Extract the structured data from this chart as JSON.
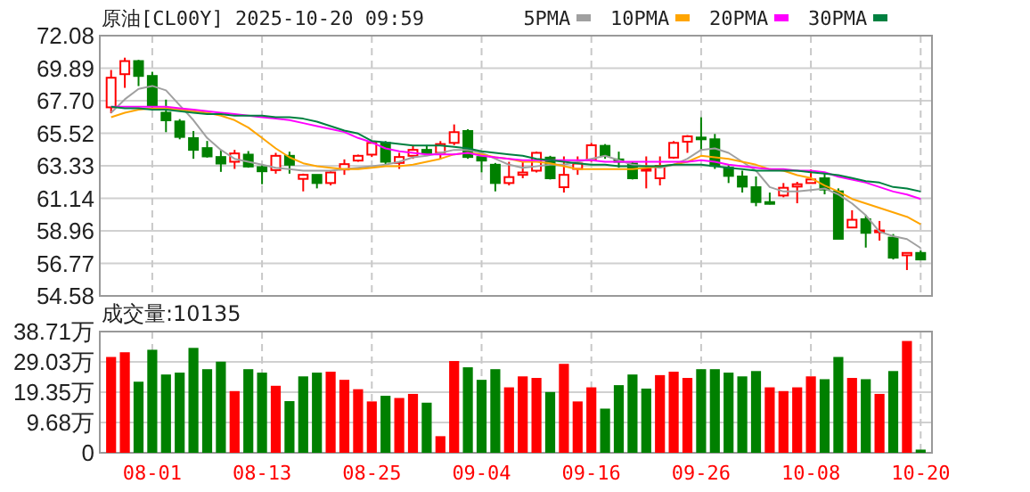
{
  "chart_data": [
    {
      "type": "candlestick",
      "title": "原油[CL00Y] 2025-10-20 09:59",
      "tick_labels": "y",
      "grid": true,
      "legend": "top right",
      "categories": [
        null,
        null,
        null,
        null,
        null,
        null,
        null,
        null,
        null,
        null,
        null,
        null,
        null,
        null,
        null,
        null,
        null,
        null,
        null,
        null,
        null,
        null,
        null,
        null,
        null,
        null,
        null,
        null,
        null,
        null,
        null,
        null,
        null,
        null,
        null,
        null,
        null,
        null,
        null,
        null,
        null,
        null,
        null,
        null,
        null,
        null,
        null,
        null,
        null,
        null,
        null,
        null,
        null,
        null,
        null,
        null,
        null,
        null,
        null,
        null
      ],
      "ylim": [
        54.58,
        72.08
      ],
      "yticks": [
        {
          "value": 54.58,
          "label": "54.58"
        },
        {
          "value": 56.77,
          "label": "56.77"
        },
        {
          "value": 58.96,
          "label": "58.96"
        },
        {
          "value": 61.14,
          "label": "61.14"
        },
        {
          "value": 63.33,
          "label": "63.33"
        },
        {
          "value": 65.52,
          "label": "65.52"
        },
        {
          "value": 67.7,
          "label": "67.70"
        },
        {
          "value": 69.89,
          "label": "69.89"
        },
        {
          "value": 72.08,
          "label": "72.08"
        }
      ],
      "ohlc": [
        [
          67.26,
          69.77,
          66.86,
          69.25
        ],
        [
          69.49,
          70.6,
          68.57,
          70.37
        ],
        [
          70.37,
          70.45,
          68.69,
          69.37
        ],
        [
          69.37,
          69.65,
          67.18,
          67.38
        ],
        [
          66.9,
          67.78,
          65.59,
          66.39
        ],
        [
          66.31,
          66.47,
          65.11,
          65.27
        ],
        [
          65.19,
          65.67,
          63.8,
          64.4
        ],
        [
          64.52,
          65.0,
          63.88,
          63.96
        ],
        [
          63.92,
          64.4,
          62.92,
          63.48
        ],
        [
          63.6,
          64.4,
          63.12,
          64.16
        ],
        [
          64.08,
          64.32,
          63.2,
          63.28
        ],
        [
          63.24,
          63.4,
          62.09,
          62.96
        ],
        [
          63.04,
          64.2,
          62.8,
          64.0
        ],
        [
          64.0,
          64.28,
          62.8,
          63.4
        ],
        [
          62.45,
          62.8,
          61.61,
          62.72
        ],
        [
          62.72,
          62.72,
          61.81,
          62.17
        ],
        [
          62.17,
          63.0,
          62.01,
          62.88
        ],
        [
          63.08,
          63.76,
          62.72,
          63.44
        ],
        [
          63.68,
          64.08,
          63.6,
          64.0
        ],
        [
          64.08,
          64.99,
          63.92,
          64.87
        ],
        [
          64.87,
          64.99,
          63.4,
          63.6
        ],
        [
          63.52,
          64.2,
          63.12,
          63.92
        ],
        [
          64.0,
          64.72,
          63.8,
          64.4
        ],
        [
          64.4,
          64.72,
          64.0,
          64.16
        ],
        [
          64.2,
          64.99,
          63.76,
          64.79
        ],
        [
          64.87,
          66.11,
          64.72,
          65.59
        ],
        [
          65.67,
          65.79,
          63.8,
          63.92
        ],
        [
          63.92,
          64.08,
          62.88,
          63.68
        ],
        [
          63.4,
          63.52,
          61.61,
          62.17
        ],
        [
          62.17,
          63.6,
          62.01,
          62.57
        ],
        [
          62.72,
          63.6,
          62.49,
          62.88
        ],
        [
          63.0,
          64.28,
          62.88,
          64.2
        ],
        [
          63.88,
          64.0,
          62.41,
          62.49
        ],
        [
          61.89,
          63.96,
          61.53,
          62.72
        ],
        [
          63.12,
          63.96,
          62.72,
          63.48
        ],
        [
          63.72,
          64.87,
          63.6,
          64.71
        ],
        [
          64.67,
          64.79,
          63.8,
          64.0
        ],
        [
          63.76,
          64.28,
          63.2,
          63.6
        ],
        [
          63.48,
          63.6,
          62.41,
          62.49
        ],
        [
          63.04,
          63.96,
          61.81,
          63.12
        ],
        [
          62.49,
          63.96,
          62.01,
          63.32
        ],
        [
          63.88,
          64.99,
          63.8,
          64.87
        ],
        [
          64.95,
          65.39,
          64.2,
          65.31
        ],
        [
          65.23,
          66.59,
          64.4,
          65.15
        ],
        [
          65.11,
          65.47,
          63.12,
          63.32
        ],
        [
          63.2,
          63.4,
          62.17,
          62.65
        ],
        [
          62.61,
          63.0,
          61.53,
          61.93
        ],
        [
          61.89,
          62.61,
          60.61,
          60.89
        ],
        [
          60.89,
          61.53,
          60.73,
          60.77
        ],
        [
          61.33,
          62.17,
          61.21,
          61.85
        ],
        [
          61.93,
          62.25,
          60.81,
          62.09
        ],
        [
          62.17,
          63.08,
          62.17,
          62.41
        ],
        [
          62.49,
          62.8,
          61.41,
          61.73
        ],
        [
          61.61,
          61.81,
          58.42,
          58.42
        ],
        [
          59.18,
          60.34,
          59.18,
          59.7
        ],
        [
          59.74,
          60.02,
          57.83,
          58.82
        ],
        [
          58.9,
          59.62,
          58.3,
          58.98
        ],
        [
          58.5,
          58.74,
          57.03,
          57.15
        ],
        [
          57.31,
          57.47,
          56.32,
          57.47
        ],
        [
          57.47,
          57.63,
          57.03,
          57.03
        ]
      ],
      "series": [
        {
          "name": "5PMA",
          "type": "line",
          "color": "#a0a0a0",
          "values": [
            66.9,
            67.8,
            68.5,
            68.7,
            68.4,
            67.4,
            66.4,
            65.2,
            64.4,
            63.8,
            63.6,
            63.4,
            63.2,
            63.1,
            63.0,
            63.0,
            63.0,
            63.1,
            63.2,
            63.3,
            63.4,
            63.6,
            63.9,
            64.0,
            64.2,
            64.4,
            64.4,
            64.2,
            63.8,
            63.4,
            63.2,
            63.3,
            63.4,
            63.4,
            63.6,
            63.8,
            64.0,
            63.7,
            63.4,
            63.3,
            63.2,
            63.4,
            63.8,
            64.4,
            64.5,
            64.2,
            63.6,
            63.0,
            61.9,
            61.6,
            61.6,
            61.7,
            61.8,
            61.4,
            60.8,
            60.0,
            58.9,
            58.6,
            58.4,
            57.8
          ]
        },
        {
          "name": "10PMA",
          "type": "line",
          "color": "#ffa500",
          "values": [
            66.6,
            66.9,
            67.1,
            67.2,
            67.2,
            67.1,
            67.0,
            66.9,
            66.7,
            66.4,
            65.9,
            65.2,
            64.5,
            63.9,
            63.5,
            63.3,
            63.2,
            63.1,
            63.1,
            63.2,
            63.3,
            63.3,
            63.4,
            63.6,
            63.8,
            64.1,
            64.2,
            64.1,
            63.9,
            63.8,
            63.6,
            63.6,
            63.5,
            63.3,
            63.1,
            63.1,
            63.1,
            63.1,
            63.1,
            63.2,
            63.3,
            63.4,
            63.6,
            64.0,
            63.9,
            63.8,
            63.6,
            63.4,
            63.1,
            63.0,
            62.7,
            62.5,
            62.0,
            61.6,
            61.1,
            60.8,
            60.5,
            60.2,
            59.9,
            59.4
          ]
        },
        {
          "name": "20PMA",
          "type": "line",
          "color": "#ff00ff",
          "values": [
            67.3,
            67.3,
            67.3,
            67.3,
            67.3,
            67.2,
            67.1,
            67.0,
            66.9,
            66.8,
            66.7,
            66.6,
            66.5,
            66.4,
            66.2,
            66.0,
            65.8,
            65.6,
            65.2,
            64.9,
            64.5,
            64.3,
            64.2,
            64.1,
            64.1,
            64.1,
            64.2,
            64.0,
            63.9,
            63.8,
            63.7,
            63.7,
            63.7,
            63.7,
            63.7,
            63.7,
            63.6,
            63.6,
            63.6,
            63.6,
            63.6,
            63.6,
            63.6,
            63.7,
            63.6,
            63.4,
            63.3,
            63.2,
            63.1,
            63.1,
            63.0,
            63.0,
            62.9,
            62.6,
            62.4,
            62.2,
            61.9,
            61.6,
            61.4,
            61.1
          ]
        },
        {
          "name": "30PMA",
          "type": "line",
          "color": "#008040",
          "values": [
            67.3,
            67.2,
            67.2,
            67.1,
            67.1,
            67.0,
            66.9,
            66.8,
            66.8,
            66.7,
            66.7,
            66.7,
            66.6,
            66.6,
            66.5,
            66.3,
            66.0,
            65.7,
            65.5,
            65.0,
            64.9,
            64.8,
            64.7,
            64.7,
            64.7,
            64.6,
            64.5,
            64.3,
            64.2,
            64.1,
            64.0,
            63.8,
            63.7,
            63.6,
            63.5,
            63.4,
            63.4,
            63.3,
            63.3,
            63.3,
            63.3,
            63.4,
            63.4,
            63.4,
            63.3,
            63.2,
            63.1,
            63.0,
            63.0,
            63.0,
            63.0,
            62.9,
            62.8,
            62.7,
            62.5,
            62.3,
            62.2,
            61.9,
            61.8,
            61.6
          ]
        }
      ]
    },
    {
      "type": "bar",
      "title": "成交量:10135",
      "grid": true,
      "categories": [
        null,
        null,
        null,
        "08-01",
        null,
        null,
        null,
        null,
        null,
        null,
        null,
        "08-13",
        null,
        null,
        null,
        null,
        null,
        null,
        null,
        "08-25",
        null,
        null,
        null,
        null,
        null,
        null,
        null,
        "09-04",
        null,
        null,
        null,
        null,
        null,
        null,
        null,
        "09-16",
        null,
        null,
        null,
        null,
        null,
        null,
        null,
        "09-26",
        null,
        null,
        null,
        null,
        null,
        null,
        null,
        "10-08",
        null,
        null,
        null,
        null,
        null,
        null,
        null,
        "10-20"
      ],
      "ylim": [
        0,
        38.71
      ],
      "yticks": [
        0,
        {
          "value": 9.68,
          "label": "9.68万"
        },
        {
          "value": 19.35,
          "label": "19.35万"
        },
        {
          "value": 29.03,
          "label": "29.03万"
        },
        {
          "value": 38.71,
          "label": "38.71万"
        }
      ],
      "values": [
        30.6,
        32.1,
        22.7,
        32.9,
        25.0,
        25.6,
        33.5,
        26.7,
        29.1,
        19.7,
        26.7,
        25.6,
        21.4,
        16.5,
        24.4,
        25.6,
        25.9,
        23.3,
        20.3,
        16.4,
        18.2,
        17.5,
        18.8,
        16.0,
        5.3,
        29.3,
        27.3,
        23.3,
        26.7,
        20.9,
        24.4,
        23.9,
        19.4,
        28.4,
        16.4,
        20.9,
        14.1,
        21.6,
        25.0,
        20.5,
        24.8,
        25.9,
        23.9,
        26.7,
        26.7,
        25.6,
        24.4,
        26.1,
        20.9,
        19.7,
        20.9,
        24.4,
        23.5,
        30.6,
        23.9,
        23.5,
        18.8,
        26.1,
        35.7,
        1.0135
      ],
      "colors": [
        "#ff0000",
        "#ff0000",
        "#008000",
        "#008000",
        "#008000",
        "#008000",
        "#008000",
        "#008000",
        "#008000",
        "#ff0000",
        "#008000",
        "#008000",
        "#ff0000",
        "#008000",
        "#008000",
        "#008000",
        "#ff0000",
        "#ff0000",
        "#ff0000",
        "#ff0000",
        "#008000",
        "#ff0000",
        "#ff0000",
        "#008000",
        "#ff0000",
        "#ff0000",
        "#008000",
        "#008000",
        "#008000",
        "#ff0000",
        "#ff0000",
        "#ff0000",
        "#008000",
        "#ff0000",
        "#ff0000",
        "#ff0000",
        "#008000",
        "#008000",
        "#008000",
        "#008000",
        "#ff0000",
        "#ff0000",
        "#ff0000",
        "#008000",
        "#008000",
        "#008000",
        "#008000",
        "#008000",
        "#ff0000",
        "#ff0000",
        "#ff0000",
        "#ff0000",
        "#008000",
        "#008000",
        "#ff0000",
        "#008000",
        "#ff0000",
        "#008000",
        "#ff0000",
        "#008000"
      ]
    }
  ]
}
